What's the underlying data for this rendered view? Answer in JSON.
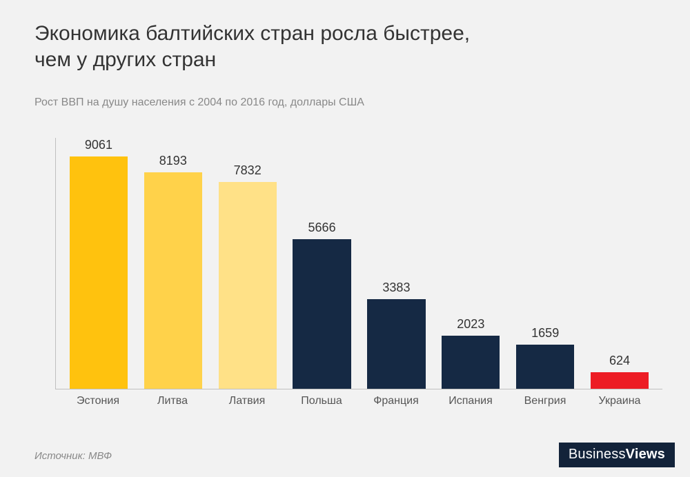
{
  "title": "Экономика балтийских стран росла быстрее,\nчем у других стран",
  "title_fontsize": 30,
  "title_color": "#333333",
  "subtitle": "Рост ВВП на душу населения с 2004 по 2016 год, доллары США",
  "subtitle_fontsize": 16,
  "subtitle_color": "#888888",
  "background_color": "#f2f2f2",
  "chart": {
    "type": "bar",
    "categories": [
      "Эстония",
      "Литва",
      "Латвия",
      "Польша",
      "Франция",
      "Испания",
      "Венгрия",
      "Украина"
    ],
    "values": [
      9061,
      8193,
      7832,
      5666,
      3383,
      2023,
      1659,
      624
    ],
    "bar_colors": [
      "#ffc20e",
      "#ffd24a",
      "#ffe187",
      "#152944",
      "#152944",
      "#152944",
      "#152944",
      "#ed1c24"
    ],
    "value_label_fontsize": 18,
    "value_label_color": "#333333",
    "axis_label_fontsize": 16,
    "axis_label_color": "#555555",
    "axis_line_color": "#bfbfbf",
    "ylim": [
      0,
      9500
    ],
    "bar_width": 0.78,
    "grid": false
  },
  "source": "Источник: МВФ",
  "source_fontsize": 15,
  "source_color": "#888888",
  "logo": {
    "part1": "Business",
    "part2": "Views",
    "bg": "#13233a",
    "fg": "#ffffff",
    "fontsize": 20
  }
}
